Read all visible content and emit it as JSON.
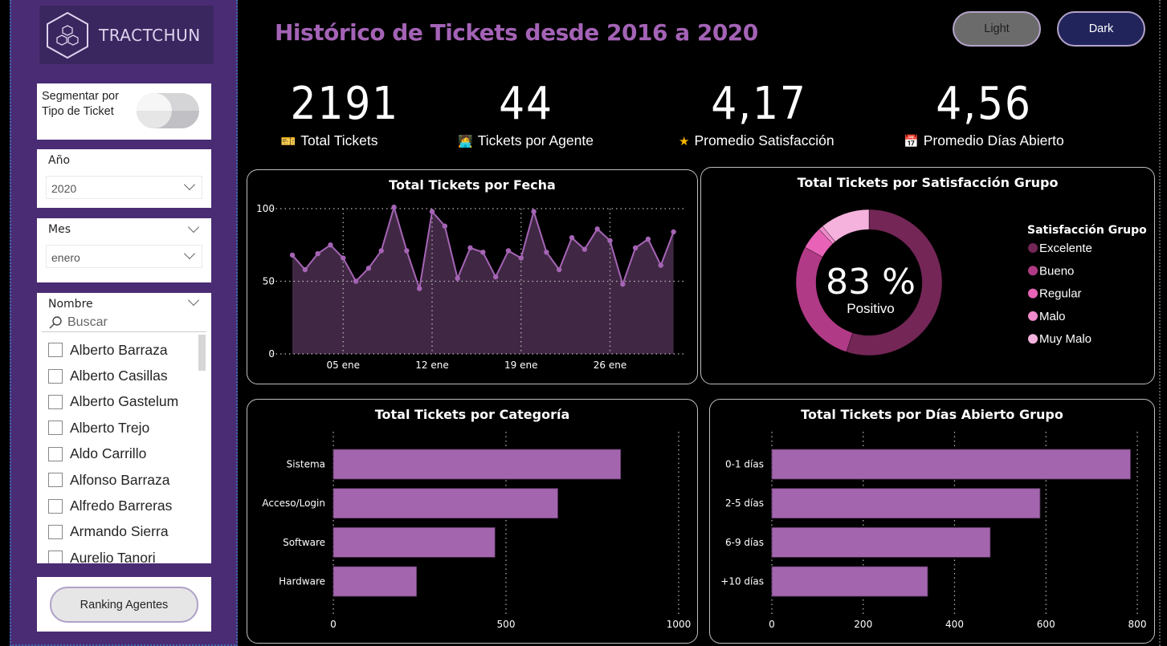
{
  "sidebar": {
    "logo_text": "TRACTCHUN",
    "toggle": {
      "label_line1": "Segmentar por",
      "label_line2": "Tipo de Ticket",
      "on": false
    },
    "year_slicer": {
      "title": "Año",
      "selected": "2020"
    },
    "month_slicer": {
      "title": "Mes",
      "selected": "enero"
    },
    "name_slicer": {
      "title": "Nombre",
      "search_placeholder": "Buscar",
      "items": [
        {
          "label": "Alberto Barraza",
          "checked": false
        },
        {
          "label": "Alberto Casillas",
          "checked": false
        },
        {
          "label": "Alberto Gastelum",
          "checked": false
        },
        {
          "label": "Alberto Trejo",
          "checked": false
        },
        {
          "label": "Aldo Carrillo",
          "checked": false
        },
        {
          "label": "Alfonso Barraza",
          "checked": false
        },
        {
          "label": "Alfredo Barreras",
          "checked": false
        },
        {
          "label": "Armando Sierra",
          "checked": false
        },
        {
          "label": "Aurelio Tanori",
          "checked": false
        }
      ]
    },
    "ranking_button": "Ranking Agentes"
  },
  "header": {
    "title": "Histórico de Tickets desde 2016 a 2020",
    "light_button": "Light",
    "dark_button": "Dark"
  },
  "kpis": [
    {
      "value": "2191",
      "label": "Total Tickets",
      "icon": "ticket-icon",
      "glyph": "🎫"
    },
    {
      "value": "44",
      "label": "Tickets por Agente",
      "icon": "technologist-icon",
      "glyph": "🧑‍💻"
    },
    {
      "value": "4,17",
      "label": "Promedio Satisfacción",
      "icon": "star-icon",
      "glyph": "★"
    },
    {
      "value": "4,56",
      "label": "Promedio Días Abierto",
      "icon": "calendar-icon",
      "glyph": "📅"
    }
  ],
  "colors": {
    "accent": "#a463b6",
    "bar": "#a366ae",
    "area_fill": "#432a48",
    "line": "#a564b5"
  },
  "chart_data": [
    {
      "type": "area",
      "title": "Total Tickets por Fecha",
      "xlabel": "",
      "ylabel": "",
      "x": [
        "01 ene",
        "02 ene",
        "03 ene",
        "04 ene",
        "05 ene",
        "06 ene",
        "07 ene",
        "08 ene",
        "09 ene",
        "10 ene",
        "11 ene",
        "12 ene",
        "13 ene",
        "14 ene",
        "15 ene",
        "16 ene",
        "17 ene",
        "18 ene",
        "19 ene",
        "20 ene",
        "21 ene",
        "22 ene",
        "23 ene",
        "24 ene",
        "25 ene",
        "26 ene",
        "27 ene",
        "28 ene",
        "29 ene",
        "30 ene",
        "31 ene"
      ],
      "values": [
        68,
        58,
        69,
        75,
        66,
        50,
        59,
        71,
        101,
        71,
        45,
        98,
        88,
        52,
        73,
        70,
        53,
        71,
        66,
        98,
        70,
        58,
        80,
        72,
        86,
        78,
        48,
        73,
        79,
        61,
        84
      ],
      "x_ticks": [
        "05 ene",
        "12 ene",
        "19 ene",
        "26 ene"
      ],
      "x_tick_index": [
        4,
        11,
        18,
        25
      ],
      "y_ticks": [
        0,
        50,
        100
      ],
      "ylim": [
        0,
        100
      ],
      "grid": true
    },
    {
      "type": "pie",
      "title": "Total Tickets por Satisfacción Grupo",
      "center_value": "83 %",
      "center_label": "Positivo",
      "legend_title": "Satisfacción Grupo",
      "legend_position": "right",
      "categories": [
        "Excelente",
        "Bueno",
        "Regular",
        "Malo",
        "Muy Malo"
      ],
      "values": [
        55,
        28,
        5,
        1,
        11
      ],
      "colors": [
        "#742657",
        "#b13a86",
        "#e863b7",
        "#ef8acb",
        "#f4b2dc"
      ]
    },
    {
      "type": "bar",
      "orientation": "horizontal",
      "title": "Total Tickets por Categoría",
      "categories": [
        "Sistema",
        "Acceso/Login",
        "Software",
        "Hardware"
      ],
      "values": [
        832,
        650,
        468,
        241
      ],
      "x_ticks": [
        0,
        500,
        1000
      ],
      "xlim": [
        0,
        1000
      ],
      "grid": true
    },
    {
      "type": "bar",
      "orientation": "horizontal",
      "title": "Total Tickets por Días Abierto Grupo",
      "categories": [
        "0-1 días",
        "2-5 días",
        "6-9 días",
        "+10 días"
      ],
      "values": [
        785,
        587,
        478,
        341
      ],
      "x_ticks": [
        0,
        200,
        400,
        600,
        800
      ],
      "xlim": [
        0,
        800
      ],
      "grid": true
    }
  ]
}
